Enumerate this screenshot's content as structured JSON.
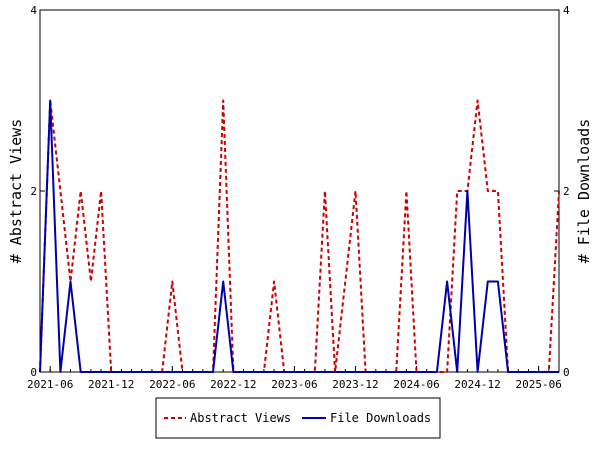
{
  "chart_data": {
    "type": "line",
    "title": "",
    "ylabel": "# Abstract Views",
    "y2label": "# File Downloads",
    "ylim": [
      0,
      4
    ],
    "y2lim": [
      0,
      4
    ],
    "yticks": [
      0,
      2,
      4
    ],
    "y2ticks": [
      0,
      2,
      4
    ],
    "xlim": [
      "2021-05",
      "2025-08"
    ],
    "xticks": [
      "2021-06",
      "2021-12",
      "2022-06",
      "2022-12",
      "2023-06",
      "2023-12",
      "2024-06",
      "2024-12",
      "2025-06"
    ],
    "grid": false,
    "legend": "bottom",
    "x": [
      "2021-05",
      "2021-06",
      "2021-07",
      "2021-08",
      "2021-09",
      "2021-10",
      "2021-11",
      "2021-12",
      "2022-01",
      "2022-02",
      "2022-03",
      "2022-04",
      "2022-05",
      "2022-06",
      "2022-07",
      "2022-08",
      "2022-09",
      "2022-10",
      "2022-11",
      "2022-12",
      "2023-01",
      "2023-02",
      "2023-03",
      "2023-04",
      "2023-05",
      "2023-06",
      "2023-07",
      "2023-08",
      "2023-09",
      "2023-10",
      "2023-11",
      "2023-12",
      "2024-01",
      "2024-02",
      "2024-03",
      "2024-04",
      "2024-05",
      "2024-06",
      "2024-07",
      "2024-08",
      "2024-09",
      "2024-10",
      "2024-11",
      "2024-12",
      "2025-01",
      "2025-02",
      "2025-03",
      "2025-04",
      "2025-05",
      "2025-06",
      "2025-07",
      "2025-08"
    ],
    "series": [
      {
        "name": "Abstract Views",
        "axis": "left",
        "color": "#cc0000",
        "style": "dashed",
        "values": [
          0,
          3,
          2,
          1,
          2,
          1,
          2,
          0,
          0,
          0,
          0,
          0,
          0,
          1,
          0,
          0,
          0,
          0,
          3,
          0,
          0,
          0,
          0,
          1,
          0,
          0,
          0,
          0,
          2,
          0,
          1,
          2,
          0,
          0,
          0,
          0,
          2,
          0,
          0,
          0,
          0,
          2,
          2,
          3,
          2,
          2,
          0,
          0,
          0,
          0,
          0,
          2
        ]
      },
      {
        "name": "File Downloads",
        "axis": "right",
        "color": "#0000aa",
        "style": "solid",
        "values": [
          0,
          3,
          0,
          1,
          0,
          0,
          0,
          0,
          0,
          0,
          0,
          0,
          0,
          0,
          0,
          0,
          0,
          0,
          1,
          0,
          0,
          0,
          0,
          0,
          0,
          0,
          0,
          0,
          0,
          0,
          0,
          0,
          0,
          0,
          0,
          0,
          0,
          0,
          0,
          0,
          1,
          0,
          2,
          0,
          1,
          1,
          0,
          0,
          0,
          0,
          0,
          0
        ]
      }
    ]
  }
}
